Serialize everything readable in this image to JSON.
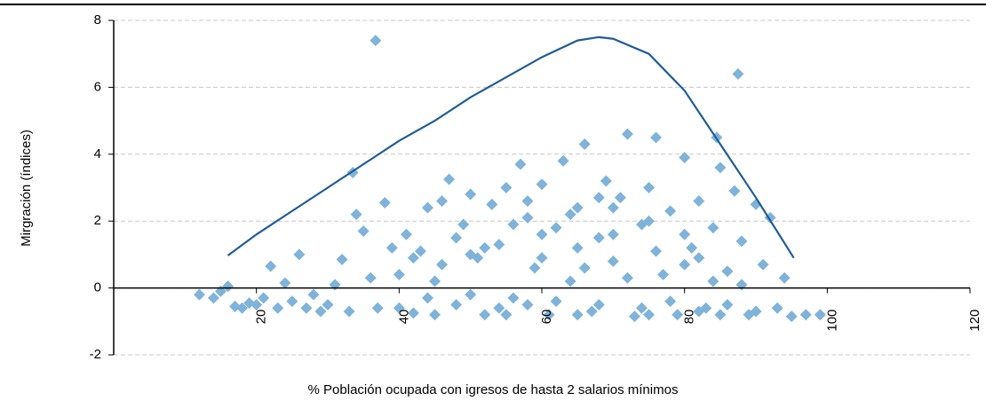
{
  "chart_data": {
    "type": "scatter",
    "x_label": "% Población ocupada con igresos de hasta 2 salarios mínimos",
    "y_label": "Mirgración (índices)",
    "xlim": [
      0,
      120
    ],
    "ylim": [
      -2,
      8
    ],
    "xticks": [
      20,
      40,
      60,
      80,
      100,
      120
    ],
    "yticks": [
      -2,
      0,
      2,
      4,
      6,
      8
    ],
    "grid": true,
    "series": [
      {
        "type": "scatter",
        "color": "#7fb3d9",
        "x": [
          12,
          14,
          15,
          16,
          17,
          18,
          19,
          20,
          21,
          22,
          23,
          24,
          25,
          26,
          27,
          28,
          29,
          30,
          31,
          32,
          33,
          33.5,
          34,
          35,
          36,
          36.7,
          37,
          38,
          39,
          40,
          41,
          42,
          43,
          44,
          45,
          46,
          47,
          48,
          49,
          50,
          51,
          52,
          53,
          54,
          55,
          56,
          57,
          58,
          59,
          60,
          61,
          62,
          63,
          64,
          65,
          66,
          67,
          68,
          69,
          70,
          71,
          72,
          73,
          74,
          75,
          76,
          77,
          78,
          79,
          80,
          81,
          82,
          83,
          84,
          84.5,
          85,
          86,
          87,
          87.5,
          88,
          89,
          90,
          91,
          92,
          93,
          94,
          95,
          97,
          99,
          40,
          42,
          44,
          46,
          48,
          50,
          52,
          54,
          56,
          58,
          60,
          62,
          64,
          66,
          68,
          70,
          72,
          74,
          76,
          78,
          80,
          82,
          84,
          86,
          88,
          90,
          45,
          55,
          65,
          75,
          85,
          60,
          70,
          80,
          50,
          65,
          75,
          82,
          58,
          68
        ],
        "values": [
          -0.2,
          -0.3,
          -0.1,
          0.05,
          -0.55,
          -0.6,
          -0.45,
          -0.5,
          -0.3,
          0.65,
          -0.6,
          0.15,
          -0.4,
          1.0,
          -0.6,
          -0.2,
          -0.7,
          -0.5,
          0.1,
          0.85,
          -0.7,
          3.45,
          2.2,
          1.7,
          0.3,
          7.4,
          -0.6,
          2.55,
          1.2,
          0.4,
          1.6,
          -0.75,
          1.1,
          2.4,
          0.2,
          2.6,
          3.25,
          -0.5,
          1.9,
          2.8,
          0.9,
          -0.8,
          2.5,
          1.3,
          3.0,
          -0.3,
          3.7,
          2.1,
          0.6,
          3.1,
          -0.8,
          1.8,
          3.8,
          0.2,
          2.4,
          4.3,
          -0.7,
          1.5,
          3.2,
          0.8,
          2.7,
          4.6,
          -0.85,
          1.9,
          3.0,
          4.5,
          0.4,
          2.3,
          -0.8,
          3.9,
          1.2,
          2.6,
          -0.6,
          1.8,
          4.5,
          3.6,
          0.5,
          2.9,
          6.4,
          1.4,
          -0.8,
          2.5,
          0.7,
          2.1,
          -0.6,
          0.3,
          -0.85,
          -0.8,
          -0.8,
          -0.6,
          0.9,
          -0.3,
          0.7,
          1.5,
          -0.2,
          1.2,
          -0.6,
          1.9,
          -0.5,
          0.9,
          -0.4,
          2.2,
          0.6,
          -0.5,
          2.4,
          0.3,
          -0.6,
          1.1,
          -0.4,
          0.7,
          -0.7,
          0.2,
          -0.5,
          0.1,
          -0.7,
          -0.8,
          -0.8,
          -0.8,
          -0.8,
          -0.8,
          1.6,
          1.6,
          1.6,
          1.0,
          1.2,
          2.0,
          0.9,
          2.6,
          2.7
        ]
      },
      {
        "type": "line",
        "color": "#1f5c99",
        "x": [
          16,
          20,
          25,
          30,
          35,
          40,
          45,
          50,
          55,
          60,
          65,
          68,
          70,
          75,
          80,
          85,
          90,
          95.3
        ],
        "values": [
          0.97,
          1.6,
          2.3,
          3.0,
          3.7,
          4.4,
          5.0,
          5.7,
          6.3,
          6.9,
          7.4,
          7.5,
          7.45,
          7.0,
          5.9,
          4.3,
          2.7,
          0.9
        ]
      }
    ]
  }
}
